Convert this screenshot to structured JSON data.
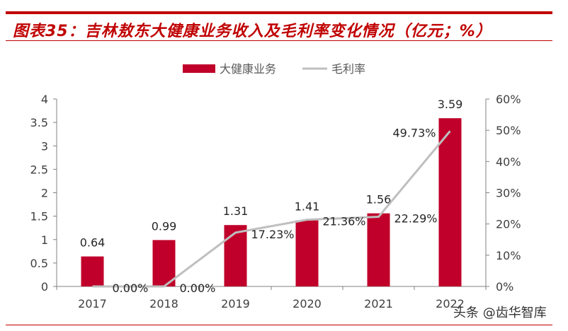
{
  "title": "图表35：吉林敖东大健康业务收入及毛利率变化情况（亿元；%）",
  "watermark": "头条 @齿华智库",
  "colors": {
    "bar": "#c0002a",
    "line": "#bfbfbf",
    "accent": "#c00000"
  },
  "chart_data": {
    "type": "bar+line",
    "categories": [
      "2017",
      "2018",
      "2019",
      "2020",
      "2021",
      "2022"
    ],
    "series": [
      {
        "name": "大健康业务",
        "type": "bar",
        "axis": "left",
        "values": [
          0.64,
          0.99,
          1.31,
          1.41,
          1.56,
          3.59
        ],
        "labels": [
          "0.64",
          "0.99",
          "1.31",
          "1.41",
          "1.56",
          "3.59"
        ]
      },
      {
        "name": "毛利率",
        "type": "line",
        "axis": "right",
        "values": [
          0.0,
          0.0,
          17.23,
          21.36,
          22.29,
          49.73
        ],
        "labels": [
          "0.00%",
          "0.00%",
          "17.23%",
          "21.36%",
          "22.29%",
          "49.73%"
        ]
      }
    ],
    "y_left": {
      "range": [
        0,
        4
      ],
      "ticks": [
        "0",
        "0.5",
        "1",
        "1.5",
        "2",
        "2.5",
        "3",
        "3.5",
        "4"
      ]
    },
    "y_right": {
      "range": [
        0,
        60
      ],
      "ticks": [
        "0%",
        "10%",
        "20%",
        "30%",
        "40%",
        "50%",
        "60%"
      ]
    },
    "legend": "top-center",
    "grid": false
  }
}
